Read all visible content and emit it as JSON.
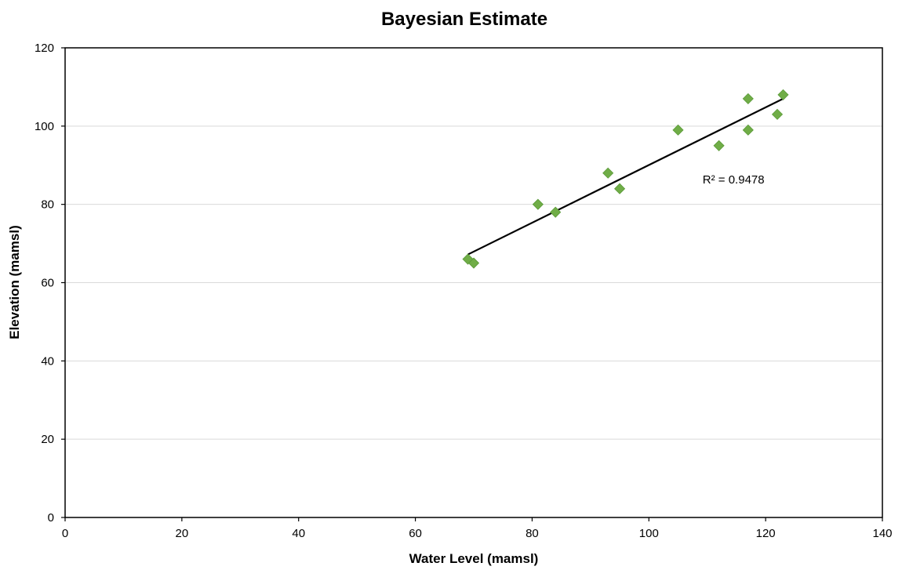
{
  "chart_data": {
    "type": "scatter",
    "title": "Bayesian Estimate",
    "xlabel": "Water Level (mamsl)",
    "ylabel": "Elevation (mamsl)",
    "xlim": [
      0,
      140
    ],
    "ylim": [
      0,
      120
    ],
    "xticks": [
      0,
      20,
      40,
      60,
      80,
      100,
      120,
      140
    ],
    "yticks": [
      0,
      20,
      40,
      60,
      80,
      100,
      120
    ],
    "grid": true,
    "legend": "none",
    "series": [
      {
        "color": "#70ad47",
        "marker": "diamond",
        "points": [
          {
            "x": 69,
            "y": 66
          },
          {
            "x": 70,
            "y": 65
          },
          {
            "x": 81,
            "y": 80
          },
          {
            "x": 84,
            "y": 78
          },
          {
            "x": 93,
            "y": 88
          },
          {
            "x": 95,
            "y": 84
          },
          {
            "x": 105,
            "y": 99
          },
          {
            "x": 112,
            "y": 95
          },
          {
            "x": 117,
            "y": 107
          },
          {
            "x": 117,
            "y": 99
          },
          {
            "x": 122,
            "y": 103
          },
          {
            "x": 123,
            "y": 108
          }
        ]
      }
    ],
    "trendline": {
      "type": "linear",
      "color": "#000000",
      "from": {
        "x": 69,
        "y": 67.2
      },
      "to": {
        "x": 123,
        "y": 107
      }
    },
    "annotations": [
      {
        "text": "R² = 0.9478",
        "x": 114.5,
        "y": 85.3
      }
    ]
  }
}
